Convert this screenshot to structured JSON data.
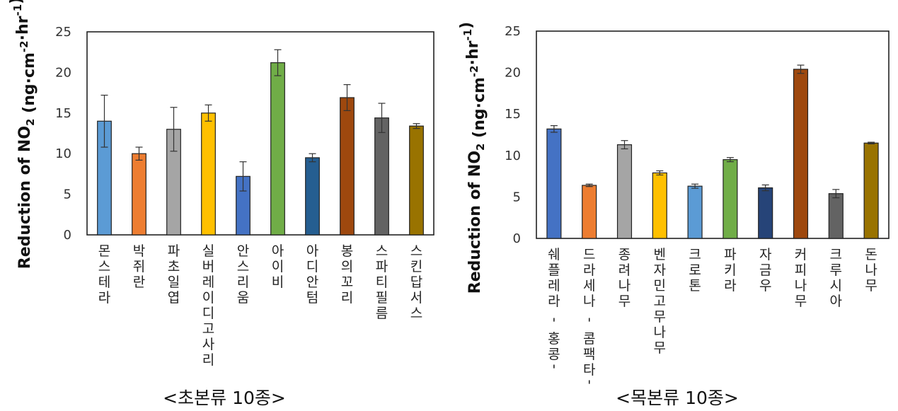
{
  "chart_data": [
    {
      "type": "bar",
      "caption": "<초본류  10종>",
      "ylabel_prefix": "Reduction of NO",
      "ylabel_sub": "2",
      "ylabel_units": " (ng·cm",
      "ylabel_sup1": "-2",
      "ylabel_mid": "·hr",
      "ylabel_sup2": "-1",
      "ylabel_close": ")",
      "ylim": [
        0,
        25
      ],
      "yticks": [
        "0",
        "5",
        "10",
        "15",
        "20",
        "25"
      ],
      "grid": false,
      "categories": [
        "몬스테라",
        "박쥐란",
        "파초일엽",
        "실버레이디고사리",
        "안스리움",
        "아이비",
        "아디안텀",
        "봉의꼬리",
        "스파티필름",
        "스킨답서스"
      ],
      "values": [
        14.0,
        10.0,
        13.0,
        15.0,
        7.2,
        21.2,
        9.5,
        16.9,
        14.4,
        13.4
      ],
      "errors": [
        3.2,
        0.8,
        2.7,
        1.0,
        1.8,
        1.6,
        0.5,
        1.6,
        1.8,
        0.3
      ],
      "colors": [
        "#5b9bd5",
        "#ed7d31",
        "#a5a5a5",
        "#ffc000",
        "#4472c4",
        "#70ad47",
        "#255e91",
        "#9e480e",
        "#636363",
        "#997300"
      ]
    },
    {
      "type": "bar",
      "caption": "<목본류  10종>",
      "ylabel_prefix": "Reduction of NO",
      "ylabel_sub": "2",
      "ylabel_units": " (ng·cm",
      "ylabel_sup1": "-2",
      "ylabel_mid": "·hr",
      "ylabel_sup2": "-1",
      "ylabel_close": ")",
      "ylim": [
        0,
        25
      ],
      "yticks": [
        "0",
        "5",
        "10",
        "15",
        "20",
        "25"
      ],
      "grid": false,
      "categories": [
        "쉐플레라 '홍콩'",
        "드라세나 '콤팩타'",
        "종려나무",
        "벤자민고무나무",
        "크로톤",
        "파키라",
        "자금우",
        "커피나무",
        "크루시아",
        "돈나무"
      ],
      "values": [
        13.2,
        6.4,
        11.3,
        7.9,
        6.3,
        9.5,
        6.1,
        20.4,
        5.4,
        11.5
      ],
      "errors": [
        0.4,
        0.15,
        0.5,
        0.25,
        0.25,
        0.25,
        0.35,
        0.5,
        0.5,
        0.1
      ],
      "colors": [
        "#4472c4",
        "#ed7d31",
        "#a5a5a5",
        "#ffc000",
        "#5b9bd5",
        "#70ad47",
        "#264478",
        "#9e480e",
        "#636363",
        "#997300"
      ]
    }
  ]
}
